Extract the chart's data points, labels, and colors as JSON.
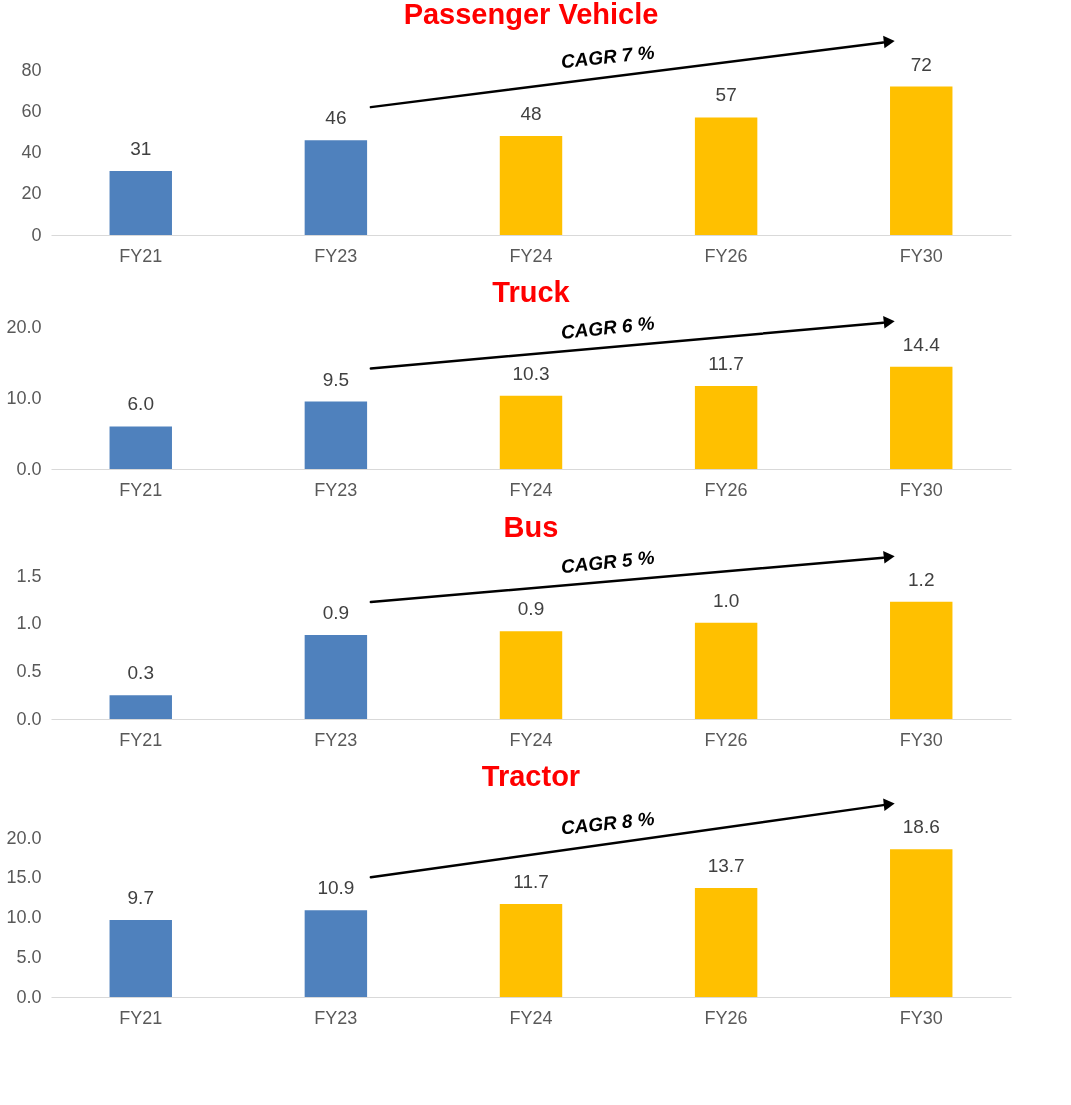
{
  "chart_data": [
    {
      "type": "bar",
      "title": "Passenger Vehicle",
      "categories": [
        "FY21",
        "FY23",
        "FY24",
        "FY26",
        "FY30"
      ],
      "values": [
        31,
        46,
        48,
        57,
        72
      ],
      "colors": [
        "#4f81bd",
        "#4f81bd",
        "#ffc000",
        "#ffc000",
        "#ffc000"
      ],
      "ylim": [
        0,
        80
      ],
      "yticks": [
        0,
        20,
        40,
        60,
        80
      ],
      "data_labels": true,
      "annotations": [
        "CAGR 7 %"
      ]
    },
    {
      "type": "bar",
      "title": "Truck",
      "categories": [
        "FY21",
        "FY23",
        "FY24",
        "FY26",
        "FY30"
      ],
      "values": [
        6.0,
        9.5,
        10.3,
        11.7,
        14.4
      ],
      "colors": [
        "#4f81bd",
        "#4f81bd",
        "#ffc000",
        "#ffc000",
        "#ffc000"
      ],
      "value_labels": [
        "6.0",
        "9.5",
        "10.3",
        "11.7",
        "14.4"
      ],
      "ylim": [
        0,
        20
      ],
      "yticks": [
        {
          "value": 0,
          "label": "0.0"
        },
        {
          "value": 10,
          "label": "10.0"
        },
        {
          "value": 20,
          "label": "20.0"
        }
      ],
      "annotations": [
        "CAGR 6 %"
      ]
    },
    {
      "type": "bar",
      "title": "Bus",
      "categories": [
        "FY21",
        "FY23",
        "FY24",
        "FY26",
        "FY30"
      ],
      "values": [
        0.25,
        0.88,
        0.92,
        1.01,
        1.23
      ],
      "colors": [
        "#4f81bd",
        "#4f81bd",
        "#ffc000",
        "#ffc000",
        "#ffc000"
      ],
      "value_labels": [
        "0.3",
        "0.9",
        "0.9",
        "1.0",
        "1.2"
      ],
      "ylim": [
        0,
        1.5
      ],
      "yticks": [
        {
          "value": 0,
          "label": "0.0"
        },
        0.5,
        {
          "value": 1,
          "label": "1.0"
        },
        1.5
      ],
      "annotations": [
        "CAGR 5 %"
      ]
    },
    {
      "type": "bar",
      "title": "Tractor",
      "categories": [
        "FY21",
        "FY23",
        "FY24",
        "FY26",
        "FY30"
      ],
      "values": [
        9.7,
        10.9,
        11.7,
        13.7,
        18.6
      ],
      "colors": [
        "#4f81bd",
        "#4f81bd",
        "#ffc000",
        "#ffc000",
        "#ffc000"
      ],
      "value_labels": [
        "9.7",
        "10.9",
        "11.7",
        "13.7",
        "18.6"
      ],
      "ylim": [
        0,
        20
      ],
      "yticks": [
        {
          "value": 0,
          "label": "0.0"
        },
        {
          "value": 5,
          "label": "5.0"
        },
        {
          "value": 10,
          "label": "10.0"
        },
        {
          "value": 15,
          "label": "15.0"
        },
        {
          "value": 20,
          "label": "20.0"
        }
      ],
      "annotations": [
        "CAGR 8 %"
      ]
    }
  ]
}
